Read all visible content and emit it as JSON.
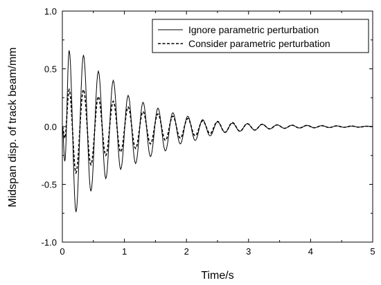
{
  "chart_data": {
    "type": "line",
    "xlabel": "Time/s",
    "ylabel": "Midspan disp. of track beam/mm",
    "xlim": [
      0,
      5
    ],
    "ylim": [
      -1.0,
      1.0
    ],
    "x_ticks": [
      0,
      1,
      2,
      3,
      4,
      5
    ],
    "y_ticks": [
      -1.0,
      -0.5,
      0.0,
      0.5,
      1.0
    ],
    "x_tick_labels": [
      "0",
      "1",
      "2",
      "3",
      "4",
      "5"
    ],
    "y_tick_labels": [
      "-1.0",
      "-0.5",
      "0.0",
      "0.5",
      "1.0"
    ],
    "grid": false,
    "legend_position": "top-right",
    "series": [
      {
        "name": "Ignore parametric perturbation",
        "style": "solid",
        "color": "#000000",
        "x": [
          0.0,
          0.04,
          0.11,
          0.22,
          0.34,
          0.46,
          0.58,
          0.7,
          0.82,
          0.94,
          1.06,
          1.18,
          1.3,
          1.42,
          1.54,
          1.66,
          1.78,
          1.9,
          2.02,
          2.14,
          2.26,
          2.38,
          2.5,
          2.62,
          2.74,
          2.86,
          2.98,
          3.1,
          3.22,
          3.34,
          3.46,
          3.58,
          3.7,
          3.82,
          3.94,
          4.06,
          4.18,
          4.3,
          4.42,
          4.54,
          4.66,
          4.78,
          4.9,
          5.0
        ],
        "y": [
          0.0,
          -0.3,
          0.66,
          -0.74,
          0.62,
          -0.56,
          0.48,
          -0.45,
          0.4,
          -0.37,
          0.27,
          -0.32,
          0.21,
          -0.26,
          0.16,
          -0.21,
          0.12,
          -0.15,
          0.09,
          -0.12,
          0.06,
          -0.08,
          0.04,
          -0.05,
          0.03,
          -0.04,
          0.025,
          -0.03,
          0.02,
          -0.02,
          0.015,
          -0.015,
          0.012,
          -0.012,
          0.01,
          -0.01,
          0.008,
          -0.008,
          0.006,
          -0.006,
          0.004,
          -0.004,
          0.003,
          0.0
        ]
      },
      {
        "name": "Consider parametric perturbation",
        "style": "dashed",
        "color": "#000000",
        "x": [
          0.0,
          0.04,
          0.11,
          0.22,
          0.34,
          0.46,
          0.58,
          0.7,
          0.82,
          0.94,
          1.06,
          1.18,
          1.3,
          1.42,
          1.54,
          1.66,
          1.78,
          1.9,
          2.02,
          2.14,
          2.26,
          2.38,
          2.5,
          2.62,
          2.74,
          2.86,
          2.98,
          3.1,
          3.22,
          3.34,
          3.46,
          3.58,
          3.7,
          3.82,
          3.94,
          4.06,
          4.18,
          4.3,
          4.42,
          4.54,
          4.66,
          4.78,
          4.9,
          5.0
        ],
        "y": [
          0.0,
          -0.1,
          0.32,
          -0.4,
          0.32,
          -0.33,
          0.26,
          -0.25,
          0.22,
          -0.22,
          0.17,
          -0.19,
          0.13,
          -0.15,
          0.11,
          -0.12,
          0.09,
          -0.1,
          0.07,
          -0.08,
          0.05,
          -0.06,
          0.045,
          -0.05,
          0.035,
          -0.04,
          0.025,
          -0.03,
          0.02,
          -0.02,
          0.015,
          -0.015,
          0.012,
          -0.012,
          0.01,
          -0.01,
          0.008,
          -0.008,
          0.006,
          -0.006,
          0.005,
          -0.005,
          0.003,
          0.0
        ]
      }
    ]
  }
}
